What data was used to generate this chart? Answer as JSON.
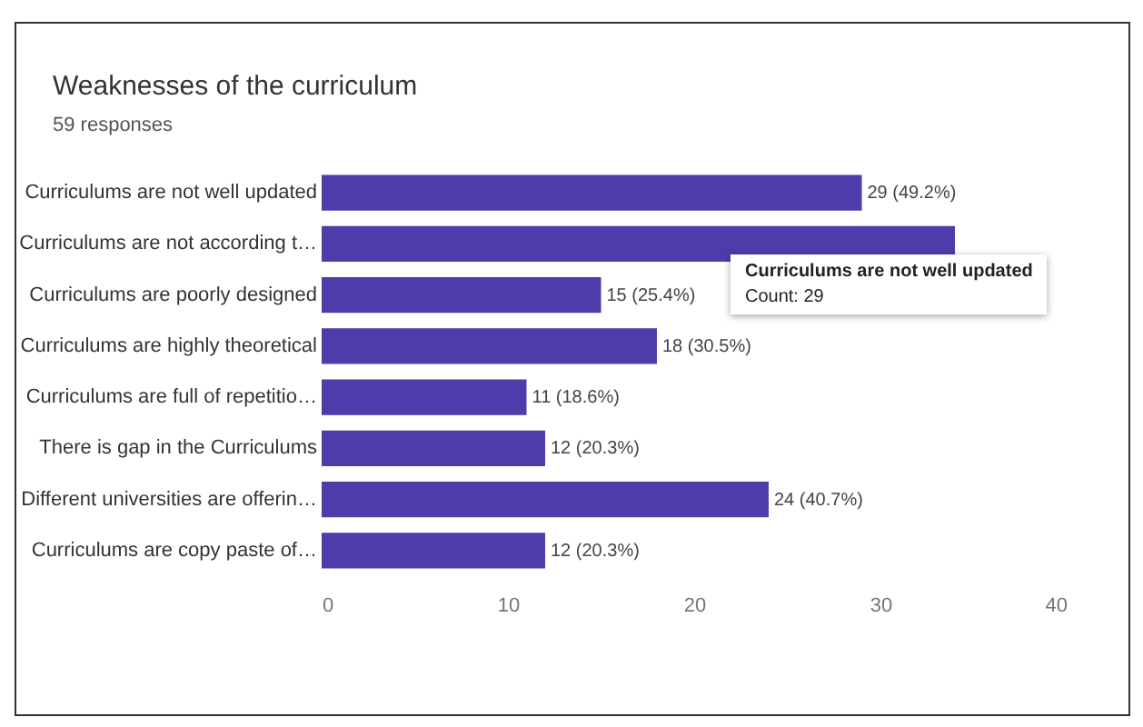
{
  "chart_data": {
    "type": "bar",
    "orientation": "horizontal",
    "title": "Weaknesses of the curriculum",
    "subtitle": "59 responses",
    "categories": [
      "Curriculums are not well updated",
      "Curriculums are not according t…",
      "Curriculums are poorly designed",
      "Curriculums are highly theoretical",
      "Curriculums are full of repetitio…",
      "There is gap in the Curriculums",
      "Different universities are offerin…",
      "Curriculums are copy paste of…"
    ],
    "values": [
      29,
      34,
      15,
      18,
      11,
      12,
      24,
      12
    ],
    "value_labels": [
      "29 (49.2%)",
      null,
      "15 (25.4%)",
      "18 (30.5%)",
      "11 (18.6%)",
      "12 (20.3%)",
      "24 (40.7%)",
      "12 (20.3%)"
    ],
    "color": "#4f3ba9",
    "xlim": [
      0,
      40
    ],
    "xticks": [
      0,
      10,
      20,
      30,
      40
    ],
    "annotations": [
      "Curriculums are not well updated",
      "Count: 29"
    ]
  }
}
